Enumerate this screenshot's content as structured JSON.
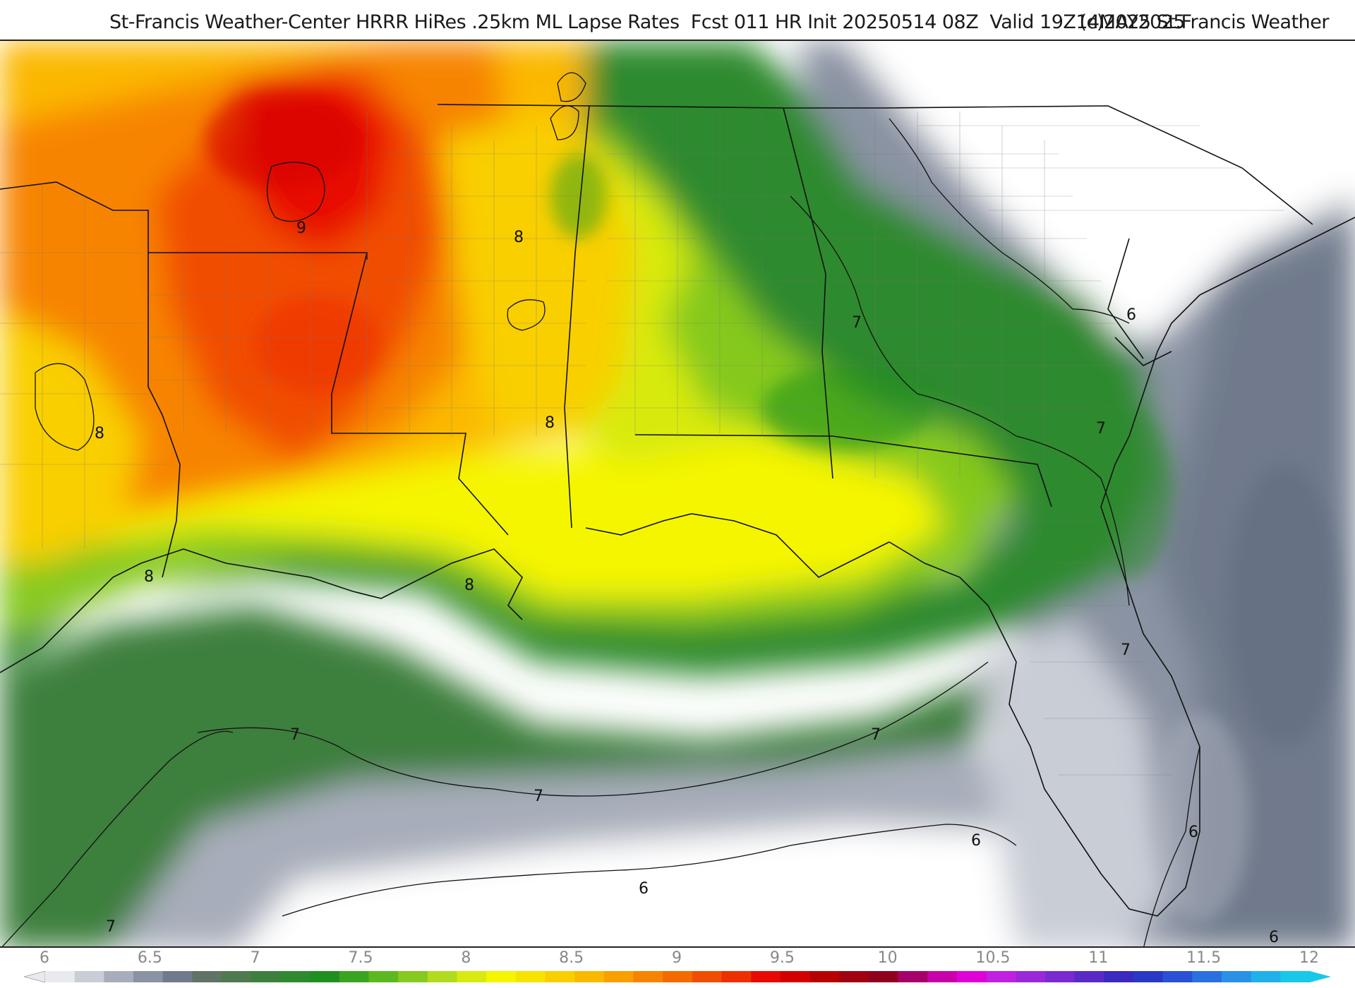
{
  "title": {
    "main": "St-Francis Weather-Center HRRR HiRes .25km ML Lapse Rates  Fcst 011 HR Init 20250514 08Z  Valid 19Z14MAY2025",
    "copyright": "(c)2025 St.Francis Weather"
  },
  "map": {
    "contour_labels": [
      "9",
      "8",
      "8",
      "8",
      "8",
      "8",
      "7",
      "7",
      "7",
      "7",
      "7",
      "7",
      "7",
      "6",
      "6",
      "6",
      "6",
      "6",
      "6"
    ]
  },
  "colorbar": {
    "labels": [
      "6",
      "6.5",
      "7",
      "7.5",
      "8",
      "8.5",
      "9",
      "9.5",
      "10",
      "10.5",
      "11",
      "11.5",
      "12"
    ],
    "colors": [
      "#e8eaee",
      "#c9cdd6",
      "#a7adba",
      "#8a93a3",
      "#6f7a8c",
      "#5f7466",
      "#4f7a4f",
      "#3d7f3d",
      "#2f8a2f",
      "#1f8f1f",
      "#3aa31f",
      "#5cb81f",
      "#86c91f",
      "#b2db1f",
      "#d8ea10",
      "#f5f500",
      "#f7e300",
      "#f9cf00",
      "#fbb800",
      "#f9a000",
      "#f78400",
      "#f46a00",
      "#f14d00",
      "#ee2f00",
      "#e80a00",
      "#d40000",
      "#b80000",
      "#a00010",
      "#90001e",
      "#a8006a",
      "#c800a8",
      "#e000d8",
      "#c020e0",
      "#9a28d8",
      "#7a2ad0",
      "#5a2ac8",
      "#3a2ac0",
      "#2a38c8",
      "#2a50d8",
      "#2a70e0",
      "#2a90e8",
      "#20b0ea",
      "#18c8e8"
    ]
  }
}
